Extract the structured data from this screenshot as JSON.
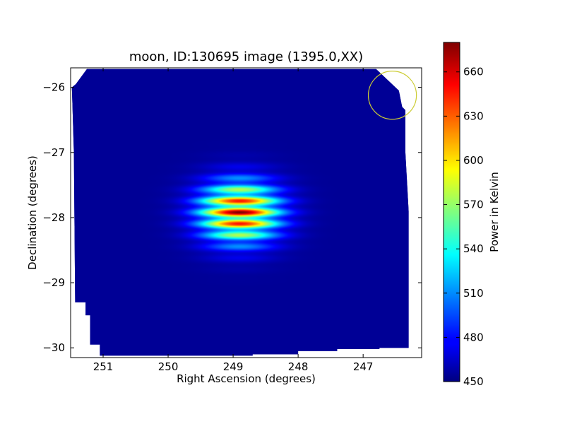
{
  "chart_data": {
    "type": "heatmap",
    "title": "moon, ID:130695 image (1395.0,XX)",
    "xlabel": "Right Ascension (degrees)",
    "ylabel": "Declination (degrees)",
    "x_inverted": true,
    "xlim": [
      251.5,
      246.1
    ],
    "ylim": [
      -30.15,
      -25.7
    ],
    "x_ticks": [
      {
        "value": 251,
        "label": "251"
      },
      {
        "value": 250,
        "label": "250"
      },
      {
        "value": 249,
        "label": "249"
      },
      {
        "value": 248,
        "label": "248"
      },
      {
        "value": 247,
        "label": "247"
      }
    ],
    "y_ticks": [
      {
        "value": -26,
        "label": "−26"
      },
      {
        "value": -27,
        "label": "−27"
      },
      {
        "value": -28,
        "label": "−28"
      },
      {
        "value": -29,
        "label": "−29"
      },
      {
        "value": -30,
        "label": "−30"
      }
    ],
    "colorbar": {
      "label": "Power in Kelvin",
      "range": [
        450,
        680
      ],
      "colormap": "jet",
      "ticks": [
        {
          "value": 450,
          "label": "450"
        },
        {
          "value": 480,
          "label": "480"
        },
        {
          "value": 510,
          "label": "510"
        },
        {
          "value": 540,
          "label": "540"
        },
        {
          "value": 570,
          "label": "570"
        },
        {
          "value": 600,
          "label": "600"
        },
        {
          "value": 630,
          "label": "630"
        },
        {
          "value": 660,
          "label": "660"
        }
      ]
    },
    "background_value": 455,
    "source": {
      "ra": 248.9,
      "dec": -27.92,
      "peak_value": 680,
      "ra_sigma": 0.42,
      "dec_sigma": 0.32,
      "dec_fringe_period": 0.18
    },
    "beam_circle": {
      "ra": 246.55,
      "dec": -26.12,
      "radius_deg": 0.37,
      "color": "#cccc33"
    },
    "data_region_outline": [
      [
        251.25,
        -25.72
      ],
      [
        246.8,
        -25.72
      ],
      [
        246.45,
        -26.05
      ],
      [
        246.4,
        -26.3
      ],
      [
        246.35,
        -26.35
      ],
      [
        246.35,
        -27.0
      ],
      [
        246.3,
        -27.9
      ],
      [
        246.3,
        -30.0
      ],
      [
        246.75,
        -30.0
      ],
      [
        246.75,
        -30.02
      ],
      [
        247.4,
        -30.02
      ],
      [
        247.4,
        -30.05
      ],
      [
        248.0,
        -30.05
      ],
      [
        248.0,
        -30.1
      ],
      [
        248.7,
        -30.1
      ],
      [
        248.7,
        -30.12
      ],
      [
        251.05,
        -30.12
      ],
      [
        251.05,
        -29.95
      ],
      [
        251.2,
        -29.95
      ],
      [
        251.2,
        -29.5
      ],
      [
        251.27,
        -29.5
      ],
      [
        251.27,
        -29.3
      ],
      [
        251.3,
        -29.3
      ],
      [
        251.43,
        -29.3
      ],
      [
        251.45,
        -27.0
      ],
      [
        251.48,
        -26.0
      ],
      [
        251.42,
        -25.95
      ]
    ]
  }
}
